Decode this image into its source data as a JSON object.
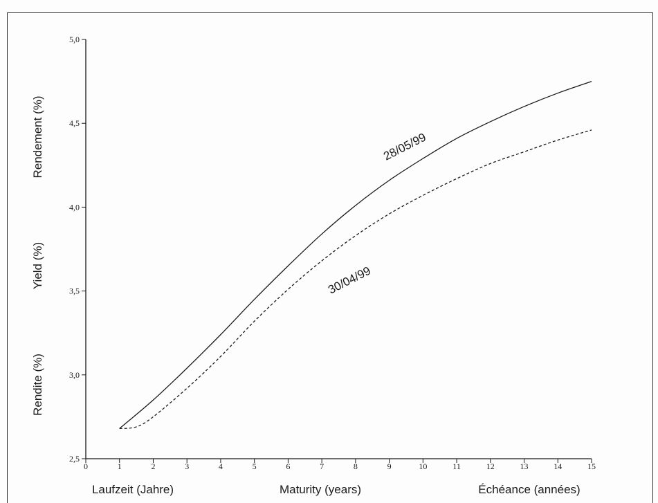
{
  "chart_data": {
    "type": "line",
    "title": "",
    "ylabels": [
      "Rendement (%)",
      "Yield (%)",
      "Rendite (%)"
    ],
    "xlabels": [
      "Laufzeit (Jahre)",
      "Maturity (years)",
      "Échéance (années)"
    ],
    "xlim": [
      0,
      15
    ],
    "ylim": [
      2.5,
      5.0
    ],
    "xticks": [
      0,
      1,
      2,
      3,
      4,
      5,
      6,
      7,
      8,
      9,
      10,
      11,
      12,
      13,
      14,
      15
    ],
    "xtick_labels": [
      "0",
      "1",
      "2",
      "3",
      "4",
      "5",
      "6",
      "7",
      "8",
      "9",
      "10",
      "11",
      "12",
      "13",
      "14",
      "15"
    ],
    "yticks": [
      2.5,
      3.0,
      3.5,
      4.0,
      4.5,
      5.0
    ],
    "ytick_labels": [
      "2,5",
      "3,0",
      "3,5",
      "4,0",
      "4,5",
      "5,0"
    ],
    "grid": false,
    "series": [
      {
        "name": "28/05/99",
        "style": "solid",
        "color": "#1a1a1a",
        "x": [
          1,
          2,
          3,
          4,
          5,
          6,
          7,
          8,
          9,
          10,
          11,
          12,
          13,
          14,
          15
        ],
        "y": [
          2.68,
          2.85,
          3.04,
          3.24,
          3.45,
          3.65,
          3.84,
          4.01,
          4.16,
          4.29,
          4.41,
          4.51,
          4.6,
          4.68,
          4.75
        ]
      },
      {
        "name": "30/04/99",
        "style": "dashed",
        "color": "#1a1a1a",
        "x": [
          1,
          1.5,
          2,
          3,
          4,
          5,
          6,
          7,
          8,
          9,
          10,
          11,
          12,
          13,
          14,
          15
        ],
        "y": [
          2.68,
          2.69,
          2.75,
          2.92,
          3.11,
          3.32,
          3.51,
          3.68,
          3.83,
          3.96,
          4.07,
          4.17,
          4.26,
          4.33,
          4.4,
          4.46
        ]
      }
    ]
  }
}
